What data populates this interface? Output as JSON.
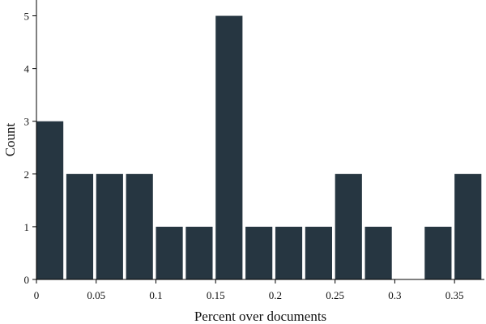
{
  "chart_data": {
    "type": "bar",
    "title": "",
    "xlabel": "Percent over documents",
    "ylabel": "Count",
    "bins": [
      {
        "start": 0.0,
        "end": 0.0225,
        "count": 3
      },
      {
        "start": 0.025,
        "end": 0.0475,
        "count": 2
      },
      {
        "start": 0.05,
        "end": 0.0725,
        "count": 2
      },
      {
        "start": 0.075,
        "end": 0.0975,
        "count": 2
      },
      {
        "start": 0.1,
        "end": 0.1225,
        "count": 1
      },
      {
        "start": 0.125,
        "end": 0.1475,
        "count": 1
      },
      {
        "start": 0.15,
        "end": 0.1725,
        "count": 5
      },
      {
        "start": 0.175,
        "end": 0.1975,
        "count": 1
      },
      {
        "start": 0.2,
        "end": 0.2225,
        "count": 1
      },
      {
        "start": 0.225,
        "end": 0.2475,
        "count": 1
      },
      {
        "start": 0.25,
        "end": 0.2725,
        "count": 2
      },
      {
        "start": 0.275,
        "end": 0.2975,
        "count": 1
      },
      {
        "start": 0.3,
        "end": 0.3225,
        "count": 0
      },
      {
        "start": 0.325,
        "end": 0.3475,
        "count": 1
      },
      {
        "start": 0.35,
        "end": 0.3725,
        "count": 2
      }
    ],
    "xlim": [
      0,
      0.375
    ],
    "ylim": [
      0,
      5.3
    ],
    "x_ticks": [
      0,
      0.05,
      0.1,
      0.15,
      0.2,
      0.25,
      0.3,
      0.35
    ],
    "x_tick_labels": [
      "0",
      "0.05",
      "0.1",
      "0.15",
      "0.2",
      "0.25",
      "0.3",
      "0.35"
    ],
    "y_ticks": [
      0,
      1,
      2,
      3,
      4,
      5
    ],
    "y_tick_labels": [
      "0",
      "1",
      "2",
      "3",
      "4",
      "5"
    ],
    "bar_color": "#263641",
    "grid": false,
    "legend": "none"
  }
}
